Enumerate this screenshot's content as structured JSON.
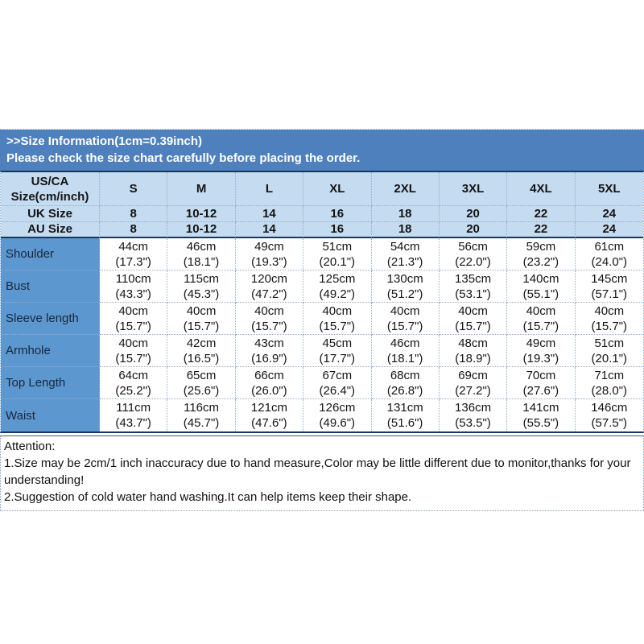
{
  "banner": {
    "line1": ">>Size Information(1cm=0.39inch)",
    "line2": "Please check the size chart carefully before placing the order."
  },
  "table": {
    "corner": [
      "US/CA",
      "Size(cm/inch)"
    ],
    "size_headers": [
      "S",
      "M",
      "L",
      "XL",
      "2XL",
      "3XL",
      "4XL",
      "5XL"
    ],
    "uk_row": {
      "label": "UK Size",
      "values": [
        "8",
        "10-12",
        "14",
        "16",
        "18",
        "20",
        "22",
        "24"
      ]
    },
    "au_row": {
      "label": "AU Size",
      "values": [
        "8",
        "10-12",
        "14",
        "16",
        "18",
        "20",
        "22",
        "24"
      ]
    },
    "rows": [
      {
        "label": "Shoulder",
        "values": [
          [
            "44cm",
            "(17.3\")"
          ],
          [
            "46cm",
            "(18.1\")"
          ],
          [
            "49cm",
            "(19.3\")"
          ],
          [
            "51cm",
            "(20.1\")"
          ],
          [
            "54cm",
            "(21.3\")"
          ],
          [
            "56cm",
            "(22.0\")"
          ],
          [
            "59cm",
            "(23.2\")"
          ],
          [
            "61cm",
            "(24.0\")"
          ]
        ]
      },
      {
        "label": "Bust",
        "values": [
          [
            "110cm",
            "(43.3\")"
          ],
          [
            "115cm",
            "(45.3\")"
          ],
          [
            "120cm",
            "(47.2\")"
          ],
          [
            "125cm",
            "(49.2\")"
          ],
          [
            "130cm",
            "(51.2\")"
          ],
          [
            "135cm",
            "(53.1\")"
          ],
          [
            "140cm",
            "(55.1\")"
          ],
          [
            "145cm",
            "(57.1\")"
          ]
        ]
      },
      {
        "label": "Sleeve length",
        "values": [
          [
            "40cm",
            "(15.7\")"
          ],
          [
            "40cm",
            "(15.7\")"
          ],
          [
            "40cm",
            "(15.7\")"
          ],
          [
            "40cm",
            "(15.7\")"
          ],
          [
            "40cm",
            "(15.7\")"
          ],
          [
            "40cm",
            "(15.7\")"
          ],
          [
            "40cm",
            "(15.7\")"
          ],
          [
            "40cm",
            "(15.7\")"
          ]
        ]
      },
      {
        "label": "Armhole",
        "values": [
          [
            "40cm",
            "(15.7\")"
          ],
          [
            "42cm",
            "(16.5\")"
          ],
          [
            "43cm",
            "(16.9\")"
          ],
          [
            "45cm",
            "(17.7\")"
          ],
          [
            "46cm",
            "(18.1\")"
          ],
          [
            "48cm",
            "(18.9\")"
          ],
          [
            "49cm",
            "(19.3\")"
          ],
          [
            "51cm",
            "(20.1\")"
          ]
        ]
      },
      {
        "label": "Top Length",
        "values": [
          [
            "64cm",
            "(25.2\")"
          ],
          [
            "65cm",
            "(25.6\")"
          ],
          [
            "66cm",
            "(26.0\")"
          ],
          [
            "67cm",
            "(26.4\")"
          ],
          [
            "68cm",
            "(26.8\")"
          ],
          [
            "69cm",
            "(27.2\")"
          ],
          [
            "70cm",
            "(27.6\")"
          ],
          [
            "71cm",
            "(28.0\")"
          ]
        ]
      },
      {
        "label": "Waist",
        "values": [
          [
            "111cm",
            "(43.7\")"
          ],
          [
            "116cm",
            "(45.7\")"
          ],
          [
            "121cm",
            "(47.6\")"
          ],
          [
            "126cm",
            "(49.6\")"
          ],
          [
            "131cm",
            "(51.6\")"
          ],
          [
            "136cm",
            "(53.5\")"
          ],
          [
            "141cm",
            "(55.5\")"
          ],
          [
            "146cm",
            "(57.5\")"
          ]
        ]
      }
    ]
  },
  "attention": {
    "title": "Attention:",
    "line1": "1.Size may be 2cm/1 inch inaccuracy due to hand measure,Color may be little different due to monitor,thanks for your understanding!",
    "line2": "2.Suggestion of cold water hand washing.It can help items keep their shape."
  },
  "colors": {
    "banner_blue": "#4e80be",
    "header_light_blue": "#c5dbf0",
    "label_medium_blue": "#5c97cf",
    "navy_border": "#17375e"
  }
}
